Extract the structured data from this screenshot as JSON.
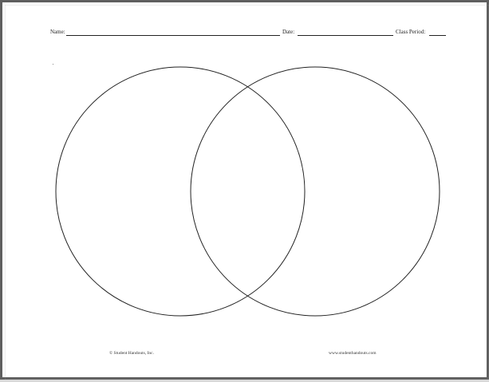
{
  "worksheet": {
    "header": {
      "name_label": "Name:",
      "date_label": "Date:",
      "class_period_label": "Class Period:"
    },
    "footer": {
      "copyright": "© Student Handouts, Inc.",
      "website": "www.studenthandouts.com"
    },
    "diagram": {
      "type": "venn-diagram",
      "circles": 2,
      "stroke_color": "#222222"
    }
  }
}
